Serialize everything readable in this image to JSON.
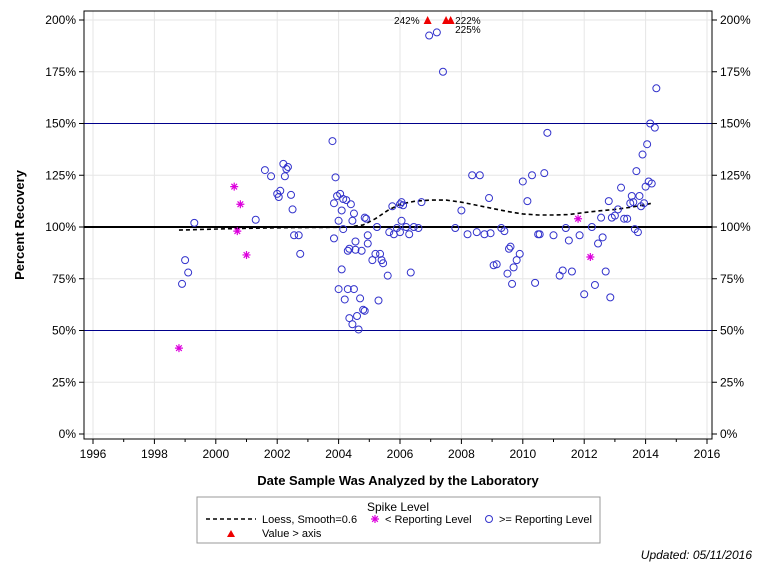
{
  "colors": {
    "ref_line": "#00008B",
    "baseline": "#000000",
    "reporting_marker": "#3333CC",
    "below_marker": "#DD00DD",
    "over_axis_marker": "#EE0000",
    "grid": "#E6E6E6"
  },
  "chart_data": {
    "type": "scatter",
    "xlabel": "Date Sample Was Analyzed by the Laboratory",
    "ylabel": "Percent Recovery",
    "xlim": [
      1996,
      2016
    ],
    "ylim": [
      0,
      200
    ],
    "x_ticks": [
      1996,
      1998,
      2000,
      2002,
      2004,
      2006,
      2008,
      2010,
      2012,
      2014,
      2016
    ],
    "y_ticks": [
      0,
      25,
      50,
      75,
      100,
      125,
      150,
      175,
      200
    ],
    "y_tick_labels": [
      "0%",
      "25%",
      "50%",
      "75%",
      "100%",
      "125%",
      "150%",
      "175%",
      "200%"
    ],
    "reference_lines": [
      50,
      150
    ],
    "baseline": 100,
    "grid": true,
    "legend_placement": "bottom",
    "legend_title": "Spike Level",
    "legend_entries": [
      "Loess, Smooth=0.6",
      "< Reporting Level",
      ">= Reporting Level",
      "Value > axis"
    ],
    "over_axis_annotations": [
      {
        "x": 2006.9,
        "label": "242%"
      },
      {
        "x": 2007.6,
        "label": "222%"
      },
      {
        "x": 2007.6,
        "label": "225%"
      }
    ],
    "series": [
      {
        "name": "Loess, Smooth=0.6",
        "style": "dashed-line",
        "points": [
          [
            1998.8,
            98.5
          ],
          [
            1999.5,
            98.8
          ],
          [
            2000.5,
            99.2
          ],
          [
            2001.5,
            99.5
          ],
          [
            2002.5,
            99.7
          ],
          [
            2003.5,
            99.8
          ],
          [
            2004.3,
            99.9
          ],
          [
            2004.8,
            101
          ],
          [
            2005.2,
            104
          ],
          [
            2005.6,
            108
          ],
          [
            2006.0,
            111
          ],
          [
            2006.5,
            112.5
          ],
          [
            2007.0,
            113
          ],
          [
            2007.5,
            113
          ],
          [
            2008.0,
            112
          ],
          [
            2008.5,
            110.5
          ],
          [
            2009.0,
            109
          ],
          [
            2009.5,
            107.5
          ],
          [
            2010.0,
            106.3
          ],
          [
            2010.5,
            105.8
          ],
          [
            2011.0,
            105.8
          ],
          [
            2011.5,
            106
          ],
          [
            2012.0,
            107
          ],
          [
            2012.5,
            107.8
          ],
          [
            2013.0,
            108.5
          ],
          [
            2013.5,
            109.5
          ],
          [
            2014.0,
            110.8
          ],
          [
            2014.2,
            111.5
          ]
        ]
      },
      {
        "name": "< Reporting Level",
        "style": "star",
        "points": [
          [
            1998.8,
            41.5
          ],
          [
            2000.6,
            119.5
          ],
          [
            2000.7,
            98
          ],
          [
            2000.8,
            111
          ],
          [
            2001.0,
            86.5
          ],
          [
            2011.8,
            104
          ],
          [
            2012.2,
            85.5
          ]
        ]
      },
      {
        "name": ">= Reporting Level",
        "style": "circle",
        "points": [
          [
            1998.9,
            72.5
          ],
          [
            1999.0,
            84
          ],
          [
            1999.1,
            78
          ],
          [
            1999.3,
            102
          ],
          [
            2001.3,
            103.5
          ],
          [
            2001.6,
            127.5
          ],
          [
            2001.8,
            124.5
          ],
          [
            2002.0,
            116
          ],
          [
            2002.05,
            114.5
          ],
          [
            2002.1,
            117.5
          ],
          [
            2002.2,
            130.5
          ],
          [
            2002.25,
            124.5
          ],
          [
            2002.3,
            128
          ],
          [
            2002.35,
            129
          ],
          [
            2002.45,
            115.5
          ],
          [
            2002.5,
            108.5
          ],
          [
            2002.55,
            96
          ],
          [
            2002.7,
            96
          ],
          [
            2002.75,
            87
          ],
          [
            2003.8,
            141.5
          ],
          [
            2003.85,
            111.5
          ],
          [
            2003.85,
            94.5
          ],
          [
            2003.9,
            124
          ],
          [
            2003.95,
            115
          ],
          [
            2004.0,
            70
          ],
          [
            2004.0,
            103
          ],
          [
            2004.05,
            116
          ],
          [
            2004.1,
            108
          ],
          [
            2004.1,
            79.5
          ],
          [
            2004.15,
            113.5
          ],
          [
            2004.15,
            99
          ],
          [
            2004.2,
            65
          ],
          [
            2004.25,
            113
          ],
          [
            2004.3,
            88.5
          ],
          [
            2004.3,
            70
          ],
          [
            2004.35,
            89.5
          ],
          [
            2004.35,
            56
          ],
          [
            2004.4,
            111
          ],
          [
            2004.45,
            103
          ],
          [
            2004.45,
            53
          ],
          [
            2004.5,
            70
          ],
          [
            2004.5,
            106.5
          ],
          [
            2004.55,
            89
          ],
          [
            2004.55,
            93
          ],
          [
            2004.6,
            57
          ],
          [
            2004.65,
            50.5
          ],
          [
            2004.7,
            65.5
          ],
          [
            2004.75,
            88.5
          ],
          [
            2004.8,
            60
          ],
          [
            2004.85,
            59.5
          ],
          [
            2004.85,
            104.5
          ],
          [
            2004.9,
            104
          ],
          [
            2004.95,
            92
          ],
          [
            2004.95,
            96
          ],
          [
            2005.1,
            84
          ],
          [
            2005.2,
            87
          ],
          [
            2005.25,
            100
          ],
          [
            2005.3,
            64.5
          ],
          [
            2005.35,
            87
          ],
          [
            2005.4,
            84
          ],
          [
            2005.45,
            82.5
          ],
          [
            2005.6,
            76.5
          ],
          [
            2005.65,
            97.5
          ],
          [
            2005.75,
            110
          ],
          [
            2005.8,
            96.5
          ],
          [
            2005.9,
            99.5
          ],
          [
            2006.0,
            97.5
          ],
          [
            2006.0,
            111
          ],
          [
            2006.05,
            103
          ],
          [
            2006.05,
            112
          ],
          [
            2006.1,
            110.5
          ],
          [
            2006.2,
            100
          ],
          [
            2006.3,
            96.5
          ],
          [
            2006.35,
            78
          ],
          [
            2006.45,
            100
          ],
          [
            2006.6,
            99.5
          ],
          [
            2006.7,
            112
          ],
          [
            2006.95,
            192.5
          ],
          [
            2007.2,
            194
          ],
          [
            2007.4,
            175
          ],
          [
            2007.8,
            99.5
          ],
          [
            2008.0,
            108
          ],
          [
            2008.2,
            96.5
          ],
          [
            2008.35,
            125
          ],
          [
            2008.5,
            97.5
          ],
          [
            2008.6,
            125
          ],
          [
            2008.75,
            96.5
          ],
          [
            2008.9,
            114
          ],
          [
            2008.95,
            97
          ],
          [
            2009.05,
            81.5
          ],
          [
            2009.15,
            82
          ],
          [
            2009.3,
            99.5
          ],
          [
            2009.4,
            98
          ],
          [
            2009.5,
            77.5
          ],
          [
            2009.55,
            89.5
          ],
          [
            2009.6,
            90.5
          ],
          [
            2009.65,
            72.5
          ],
          [
            2009.7,
            80.5
          ],
          [
            2009.8,
            84
          ],
          [
            2009.9,
            87
          ],
          [
            2010.0,
            122
          ],
          [
            2010.15,
            112.5
          ],
          [
            2010.3,
            125
          ],
          [
            2010.4,
            73
          ],
          [
            2010.5,
            96.5
          ],
          [
            2010.55,
            96.5
          ],
          [
            2010.7,
            126
          ],
          [
            2010.8,
            145.5
          ],
          [
            2011.0,
            96
          ],
          [
            2011.2,
            76.5
          ],
          [
            2011.3,
            79
          ],
          [
            2011.4,
            99.5
          ],
          [
            2011.5,
            93.5
          ],
          [
            2011.6,
            78.5
          ],
          [
            2011.85,
            96
          ],
          [
            2012.0,
            67.5
          ],
          [
            2012.25,
            100
          ],
          [
            2012.35,
            72
          ],
          [
            2012.45,
            92
          ],
          [
            2012.55,
            104.5
          ],
          [
            2012.6,
            95
          ],
          [
            2012.7,
            78.5
          ],
          [
            2012.8,
            112.5
          ],
          [
            2012.85,
            66
          ],
          [
            2012.9,
            104.5
          ],
          [
            2013.0,
            105.5
          ],
          [
            2013.1,
            108.5
          ],
          [
            2013.2,
            119
          ],
          [
            2013.3,
            104
          ],
          [
            2013.4,
            104
          ],
          [
            2013.5,
            111.5
          ],
          [
            2013.55,
            115
          ],
          [
            2013.6,
            112
          ],
          [
            2013.65,
            99
          ],
          [
            2013.7,
            127
          ],
          [
            2013.75,
            97.5
          ],
          [
            2013.8,
            115
          ],
          [
            2013.85,
            110
          ],
          [
            2013.9,
            135
          ],
          [
            2013.95,
            111.5
          ],
          [
            2014.0,
            119.5
          ],
          [
            2014.05,
            140
          ],
          [
            2014.1,
            122
          ],
          [
            2014.15,
            150
          ],
          [
            2014.2,
            121
          ],
          [
            2014.3,
            148
          ],
          [
            2014.35,
            167
          ]
        ]
      },
      {
        "name": "Value > axis",
        "style": "triangle",
        "points": [
          [
            2006.9,
            200
          ],
          [
            2007.5,
            200
          ],
          [
            2007.65,
            200
          ]
        ]
      }
    ]
  },
  "footer": {
    "updated": "Updated: 05/11/2016"
  }
}
